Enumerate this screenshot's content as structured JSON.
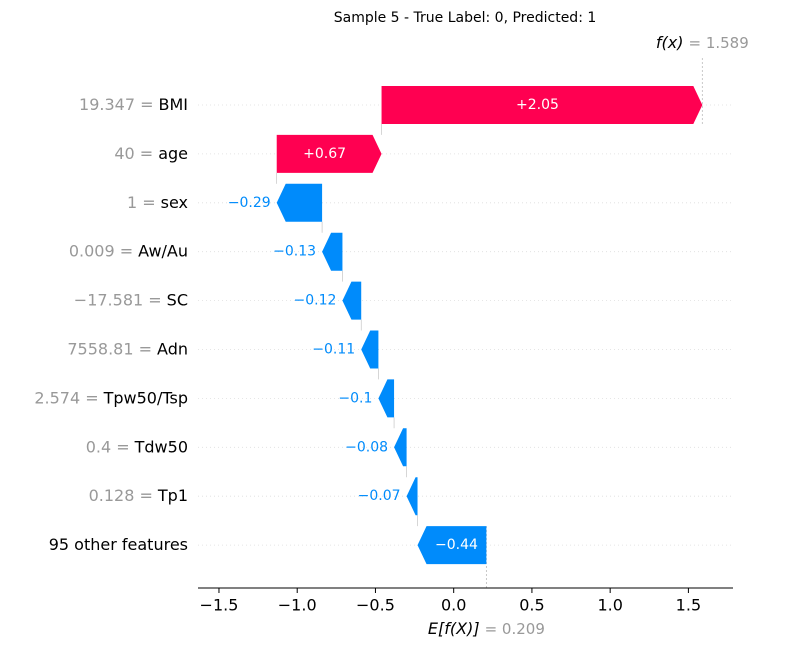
{
  "chart_data": {
    "type": "waterfall",
    "title": "Sample 5 - True Label: 0, Predicted: 1",
    "categories": [
      "BMI",
      "age",
      "sex",
      "Aw/Au",
      "SC",
      "Adn",
      "Tpw50/Tsp",
      "Tdw50",
      "Tp1",
      "95 other features"
    ],
    "feature_values": [
      "19.347 =",
      "40 =",
      "1 =",
      "0.009 =",
      "−17.581 =",
      "7558.81 =",
      "2.574 =",
      "0.4 =",
      "0.128 =",
      null
    ],
    "values": [
      2.05,
      0.67,
      -0.29,
      -0.13,
      -0.12,
      -0.11,
      -0.1,
      -0.08,
      -0.07,
      -0.44
    ],
    "value_labels": [
      "+2.05",
      "+0.67",
      "−0.29",
      "−0.13",
      "−0.12",
      "−0.11",
      "−0.1",
      "−0.08",
      "−0.07",
      "−0.44"
    ],
    "base_value": 0.209,
    "base_label": "E[f(X)]",
    "base_value_label": "= 0.209",
    "output_value": 1.589,
    "output_label": "f(x)",
    "output_value_label": "= 1.589",
    "colors": {
      "positive": "#ff0051",
      "negative": "#008bfb"
    },
    "xlim": [
      -1.634,
      1.785
    ],
    "xticks": [
      {
        "value": -1.5,
        "label": "−1.5"
      },
      {
        "value": -1.0,
        "label": "−1.0"
      },
      {
        "value": -0.5,
        "label": "−0.5"
      },
      {
        "value": 0,
        "label": "0.0"
      },
      0.5,
      {
        "value": 1.0,
        "label": "1.0"
      },
      1.5
    ]
  }
}
